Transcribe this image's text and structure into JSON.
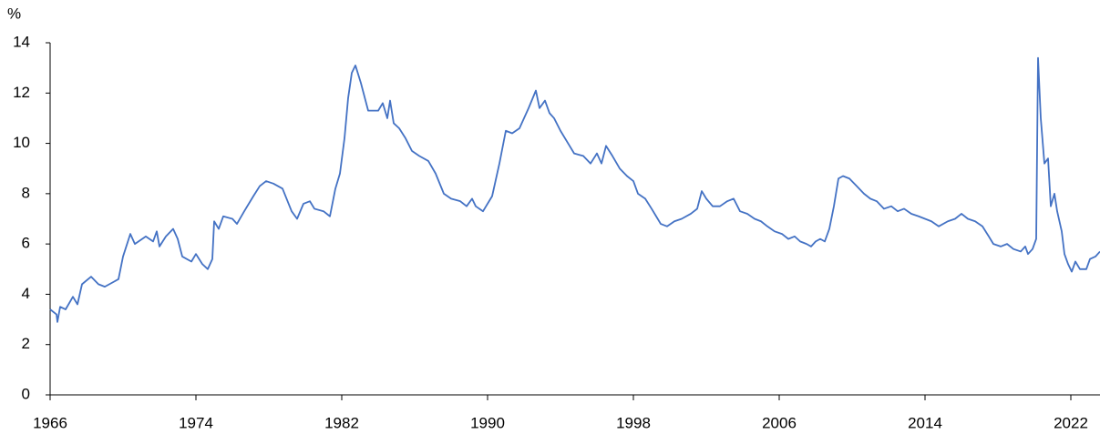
{
  "chart_data": {
    "type": "line",
    "y_label": "%",
    "x": [
      1966.0,
      1966.35,
      1966.4,
      1966.55,
      1966.85,
      1967.25,
      1967.5,
      1967.75,
      1968.25,
      1968.65,
      1969,
      1969.5,
      1969.75,
      1970,
      1970.4,
      1970.65,
      1971.25,
      1971.65,
      1971.85,
      1972,
      1972.35,
      1972.75,
      1973,
      1973.25,
      1973.75,
      1974,
      1974.35,
      1974.65,
      1974.9,
      1975,
      1975.25,
      1975.5,
      1976,
      1976.25,
      1976.65,
      1977.15,
      1977.5,
      1977.85,
      1978.25,
      1978.75,
      1979.25,
      1979.55,
      1979.9,
      1980.25,
      1980.5,
      1981,
      1981.35,
      1981.65,
      1981.9,
      1982.15,
      1982.35,
      1982.55,
      1982.75,
      1983.05,
      1983.45,
      1984,
      1984.25,
      1984.5,
      1984.65,
      1984.85,
      1985.15,
      1985.5,
      1985.85,
      1986.25,
      1986.75,
      1987.15,
      1987.6,
      1988,
      1988.5,
      1988.85,
      1989.15,
      1989.35,
      1989.75,
      1990.25,
      1990.65,
      1991,
      1991.35,
      1991.75,
      1992.25,
      1992.65,
      1992.85,
      1993.15,
      1993.4,
      1993.65,
      1994,
      1994.5,
      1994.75,
      1995.25,
      1995.65,
      1996,
      1996.25,
      1996.5,
      1996.85,
      1997.25,
      1997.65,
      1998,
      1998.25,
      1998.65,
      1999,
      1999.25,
      1999.5,
      1999.85,
      2000.25,
      2000.65,
      2001.15,
      2001.5,
      2001.75,
      2002,
      2002.35,
      2002.75,
      2003.15,
      2003.5,
      2003.85,
      2004.25,
      2004.65,
      2005,
      2005.35,
      2005.75,
      2006.15,
      2006.5,
      2006.85,
      2007.15,
      2007.5,
      2007.75,
      2008,
      2008.25,
      2008.5,
      2008.75,
      2009,
      2009.25,
      2009.5,
      2009.85,
      2010.25,
      2010.65,
      2011,
      2011.35,
      2011.75,
      2012.15,
      2012.5,
      2012.85,
      2013.25,
      2013.65,
      2014,
      2014.35,
      2014.75,
      2015.25,
      2015.65,
      2016,
      2016.35,
      2016.75,
      2017.15,
      2017.5,
      2017.75,
      2018.15,
      2018.5,
      2018.85,
      2019.25,
      2019.5,
      2019.65,
      2019.9,
      2020.1,
      2020.2,
      2020.35,
      2020.55,
      2020.75,
      2020.9,
      2021.1,
      2021.25,
      2021.5,
      2021.65,
      2021.85,
      2022.05,
      2022.25,
      2022.5,
      2022.85,
      2023.05,
      2023.35,
      2023.6
    ],
    "series": [
      {
        "color": "#4472c4",
        "values": [
          3.4,
          3.2,
          2.9,
          3.5,
          3.4,
          3.9,
          3.6,
          4.4,
          4.7,
          4.4,
          4.3,
          4.5,
          4.6,
          5.5,
          6.4,
          6.0,
          6.3,
          6.1,
          6.5,
          5.9,
          6.3,
          6.6,
          6.2,
          5.5,
          5.3,
          5.6,
          5.2,
          5.0,
          5.4,
          6.9,
          6.6,
          7.1,
          7.0,
          6.8,
          7.3,
          7.9,
          8.3,
          8.5,
          8.4,
          8.2,
          7.3,
          7.0,
          7.6,
          7.7,
          7.4,
          7.3,
          7.1,
          8.2,
          8.8,
          10.2,
          11.8,
          12.8,
          13.1,
          12.4,
          11.3,
          11.3,
          11.6,
          11.0,
          11.7,
          10.8,
          10.6,
          10.2,
          9.7,
          9.5,
          9.3,
          8.8,
          8.0,
          7.8,
          7.7,
          7.5,
          7.8,
          7.5,
          7.3,
          7.9,
          9.2,
          10.5,
          10.4,
          10.6,
          11.4,
          12.1,
          11.4,
          11.7,
          11.2,
          11.0,
          10.5,
          9.9,
          9.6,
          9.5,
          9.2,
          9.6,
          9.2,
          9.9,
          9.5,
          9.0,
          8.7,
          8.5,
          8.0,
          7.8,
          7.4,
          7.1,
          6.8,
          6.7,
          6.9,
          7.0,
          7.2,
          7.4,
          8.1,
          7.8,
          7.5,
          7.5,
          7.7,
          7.8,
          7.3,
          7.2,
          7.0,
          6.9,
          6.7,
          6.5,
          6.4,
          6.2,
          6.3,
          6.1,
          6.0,
          5.9,
          6.1,
          6.2,
          6.1,
          6.6,
          7.5,
          8.6,
          8.7,
          8.6,
          8.3,
          8.0,
          7.8,
          7.7,
          7.4,
          7.5,
          7.3,
          7.4,
          7.2,
          7.1,
          7.0,
          6.9,
          6.7,
          6.9,
          7.0,
          7.2,
          7.0,
          6.9,
          6.7,
          6.3,
          6.0,
          5.9,
          6.0,
          5.8,
          5.7,
          5.9,
          5.6,
          5.8,
          6.2,
          13.4,
          11.0,
          9.2,
          9.4,
          7.5,
          8.0,
          7.3,
          6.5,
          5.6,
          5.2,
          4.9,
          5.3,
          5.0,
          5.0,
          5.4,
          5.5,
          5.7
        ]
      }
    ],
    "xlim": [
      1966,
      2023.6
    ],
    "xticks": [
      1966,
      1974,
      1982,
      1990,
      1998,
      2006,
      2014,
      2022
    ],
    "ylim": [
      0,
      14
    ],
    "yticks": [
      0,
      2,
      4,
      6,
      8,
      10,
      12,
      14
    ],
    "grid": false
  }
}
